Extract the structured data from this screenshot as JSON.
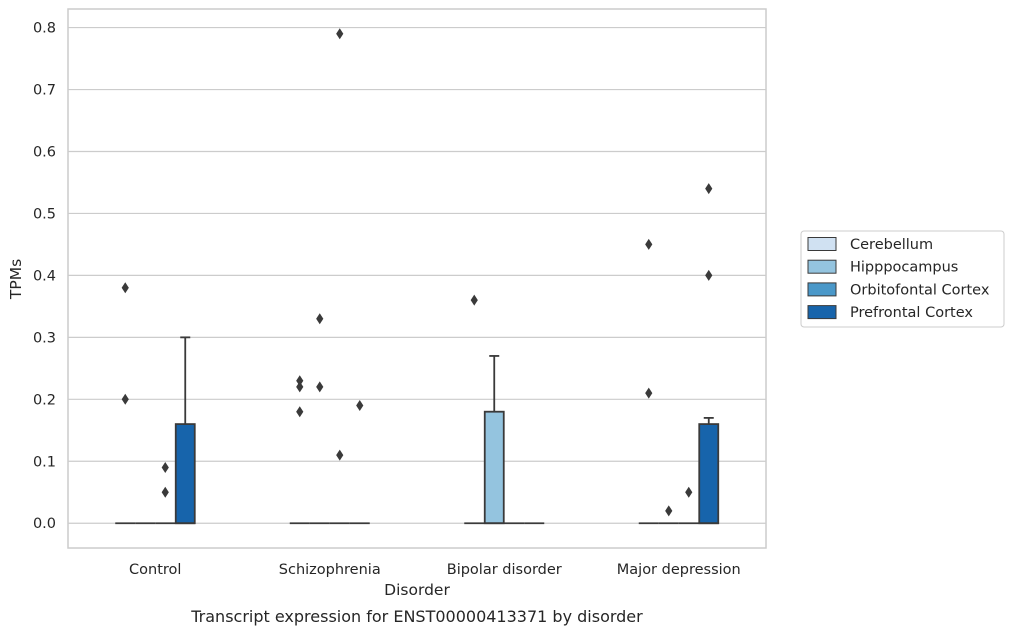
{
  "caption": "Transcript expression for ENST00000413371 by disorder",
  "colors": {
    "grid": "#cccccc",
    "frame": "#cccccc",
    "line": "#3a3a3a",
    "flier": "#3a3a3a"
  },
  "chart_data": {
    "type": "box",
    "xlabel": "Disorder",
    "ylabel": "TPMs",
    "ylim": [
      -0.04,
      0.83
    ],
    "yticks": [
      0.0,
      0.1,
      0.2,
      0.3,
      0.4,
      0.5,
      0.6,
      0.7,
      0.8
    ],
    "ytick_labels": [
      "0.0",
      "0.1",
      "0.2",
      "0.3",
      "0.4",
      "0.5",
      "0.6",
      "0.7",
      "0.8"
    ],
    "grid": true,
    "legend_position": "right",
    "categories": [
      "Control",
      "Schizophrenia",
      "Bipolar disorder",
      "Major depression"
    ],
    "series": [
      {
        "name": "Cerebellum",
        "color": "#d0e1f2",
        "boxes": [
          {
            "q1": 0,
            "median": 0,
            "q3": 0,
            "whisker_low": 0,
            "whisker_high": 0,
            "fliers": [
              0.38,
              0.2
            ]
          },
          {
            "q1": 0,
            "median": 0,
            "q3": 0,
            "whisker_low": 0,
            "whisker_high": 0,
            "fliers": [
              0.23,
              0.22,
              0.18
            ]
          },
          {
            "q1": 0,
            "median": 0,
            "q3": 0,
            "whisker_low": 0,
            "whisker_high": 0,
            "fliers": [
              0.36
            ]
          },
          {
            "q1": 0,
            "median": 0,
            "q3": 0,
            "whisker_low": 0,
            "whisker_high": 0,
            "fliers": [
              0.45,
              0.21
            ]
          }
        ]
      },
      {
        "name": "Hipppocampus",
        "color": "#94c4df",
        "boxes": [
          {
            "q1": 0,
            "median": 0,
            "q3": 0,
            "whisker_low": 0,
            "whisker_high": 0,
            "fliers": []
          },
          {
            "q1": 0,
            "median": 0,
            "q3": 0,
            "whisker_low": 0,
            "whisker_high": 0,
            "fliers": [
              0.33,
              0.22
            ]
          },
          {
            "q1": 0,
            "median": 0,
            "q3": 0.18,
            "whisker_low": 0,
            "whisker_high": 0.27,
            "fliers": []
          },
          {
            "q1": 0,
            "median": 0,
            "q3": 0,
            "whisker_low": 0,
            "whisker_high": 0,
            "fliers": [
              0.02
            ]
          }
        ]
      },
      {
        "name": "Orbitofontal Cortex",
        "color": "#4a98c9",
        "boxes": [
          {
            "q1": 0,
            "median": 0,
            "q3": 0,
            "whisker_low": 0,
            "whisker_high": 0,
            "fliers": [
              0.09,
              0.05
            ]
          },
          {
            "q1": 0,
            "median": 0,
            "q3": 0,
            "whisker_low": 0,
            "whisker_high": 0,
            "fliers": [
              0.79,
              0.11
            ]
          },
          {
            "q1": 0,
            "median": 0,
            "q3": 0,
            "whisker_low": 0,
            "whisker_high": 0,
            "fliers": []
          },
          {
            "q1": 0,
            "median": 0,
            "q3": 0,
            "whisker_low": 0,
            "whisker_high": 0,
            "fliers": [
              0.05
            ]
          }
        ]
      },
      {
        "name": "Prefrontal Cortex",
        "color": "#1764ab",
        "boxes": [
          {
            "q1": 0,
            "median": 0,
            "q3": 0.16,
            "whisker_low": 0,
            "whisker_high": 0.3,
            "fliers": []
          },
          {
            "q1": 0,
            "median": 0,
            "q3": 0,
            "whisker_low": 0,
            "whisker_high": 0,
            "fliers": [
              0.19
            ]
          },
          {
            "q1": 0,
            "median": 0,
            "q3": 0,
            "whisker_low": 0,
            "whisker_high": 0,
            "fliers": []
          },
          {
            "q1": 0,
            "median": 0,
            "q3": 0.16,
            "whisker_low": 0,
            "whisker_high": 0.17,
            "fliers": [
              0.54,
              0.4
            ]
          }
        ]
      }
    ]
  }
}
